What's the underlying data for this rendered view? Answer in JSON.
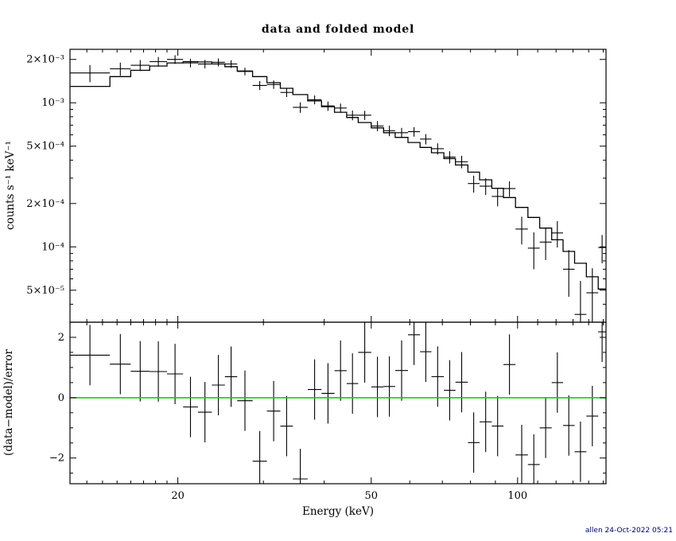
{
  "title": "data and folded model",
  "footer": "allen 24-Oct-2022 05:21",
  "colors": {
    "foreground": "#000000",
    "model_line": "#000000",
    "data_points": "#000000",
    "zero_line": "#00d900",
    "background": "#ffffff",
    "timestamp": "#000066"
  },
  "chart_data": {
    "type": "scatter",
    "subtype": "xspec-spectrum-with-residuals",
    "title": "data and folded model",
    "xlabel": "Energy (keV)",
    "xscale": "log",
    "xlim": [
      12,
      152
    ],
    "x_major_ticks": [
      {
        "value": 20,
        "label": "20"
      },
      {
        "value": 50,
        "label": "50"
      },
      {
        "value": 100,
        "label": "100"
      }
    ],
    "x_minor_ticks": [
      13,
      14,
      15,
      16,
      17,
      18,
      19,
      30,
      40,
      60,
      70,
      80,
      90,
      110,
      120,
      130,
      140,
      150
    ],
    "grid": false,
    "legend": "none",
    "panels": [
      {
        "name": "spectrum",
        "ylabel": "counts s⁻¹ keV⁻¹",
        "yscale": "log",
        "ylim": [
          3e-05,
          0.00235
        ],
        "y_major_ticks": [
          {
            "value": 0.002,
            "label": "2×10⁻³"
          },
          {
            "value": 0.001,
            "label": "10⁻³"
          },
          {
            "value": 0.0005,
            "label": "5×10⁻⁴"
          },
          {
            "value": 0.0002,
            "label": "2×10⁻⁴"
          },
          {
            "value": 0.0001,
            "label": "10⁻⁴"
          },
          {
            "value": 5e-05,
            "label": "5×10⁻⁵"
          }
        ],
        "y_minor_ticks": [
          4e-05,
          6e-05,
          7e-05,
          8e-05,
          9e-05,
          0.0003,
          0.0004,
          0.0006,
          0.0007,
          0.0008,
          0.0009
        ]
      },
      {
        "name": "residuals",
        "ylabel": "(data−model)/error",
        "yscale": "linear",
        "ylim": [
          -2.85,
          2.5
        ],
        "y_major_ticks": [
          {
            "value": 2,
            "label": "2"
          },
          {
            "value": 0,
            "label": "0"
          },
          {
            "value": -2,
            "label": "−2"
          }
        ],
        "y_minor_ticks": [
          -2.5,
          -1.5,
          -1,
          -0.5,
          0.5,
          1,
          1.5
        ],
        "zero_line": 0,
        "residual_errorbar": 1
      }
    ],
    "bin_edges_kev": [
      12.0,
      14.5,
      16.0,
      17.5,
      19.0,
      20.5,
      22.0,
      23.5,
      25.0,
      26.5,
      28.5,
      30.5,
      32.5,
      34.5,
      37.0,
      39.5,
      42.0,
      44.5,
      47.0,
      50.0,
      53.0,
      56.0,
      59.5,
      63.0,
      66.5,
      70.5,
      74.5,
      79.0,
      83.5,
      88.5,
      93.5,
      99.0,
      105.0,
      111.0,
      117.5,
      124.0,
      131.0,
      138.5,
      146.5,
      152.0
    ],
    "model": [
      0.0013,
      0.00152,
      0.00168,
      0.0018,
      0.00189,
      0.00193,
      0.00192,
      0.00186,
      0.00178,
      0.00166,
      0.00152,
      0.00138,
      0.00126,
      0.00114,
      0.00103,
      0.00094,
      0.00086,
      0.00079,
      0.00073,
      0.00067,
      0.00062,
      0.000575,
      0.00053,
      0.00049,
      0.00045,
      0.00041,
      0.00037,
      0.00033,
      0.000292,
      0.000255,
      0.00022,
      0.000188,
      0.00016,
      0.000135,
      0.000112,
      9.3e-05,
      7.7e-05,
      6.2e-05,
      5.1e-05
    ],
    "data": [
      0.00161,
      0.00172,
      0.00182,
      0.00193,
      0.002,
      0.00189,
      0.00186,
      0.00191,
      0.00186,
      0.00165,
      0.00132,
      0.00134,
      0.00118,
      0.00093,
      0.00105,
      0.00095,
      0.00092,
      0.00082,
      0.00082,
      0.00069,
      0.00064,
      0.00062,
      0.00063,
      0.00056,
      0.00048,
      0.00042,
      0.00039,
      0.000275,
      0.000264,
      0.000224,
      0.000254,
      0.000133,
      9.8e-05,
      0.000108,
      0.000125,
      7e-05,
      3.4e-05,
      4.8e-05,
      9.9e-05
    ],
    "data_error": [
      0.00022,
      0.00018,
      0.00016,
      0.00015,
      0.00014,
      0.00013,
      0.000125,
      0.00012,
      0.000115,
      0.0001,
      9.5e-05,
      9e-05,
      8.5e-05,
      7.8e-05,
      7.4e-05,
      7e-05,
      6.7e-05,
      6.4e-05,
      6e-05,
      5.6e-05,
      5.4e-05,
      5e-05,
      4.8e-05,
      4.6e-05,
      4.3e-05,
      4.1e-05,
      3.9e-05,
      3.7e-05,
      3.5e-05,
      3.3e-05,
      3.1e-05,
      2.9e-05,
      2.8e-05,
      2.7e-05,
      2.6e-05,
      2.5e-05,
      2.4e-05,
      2.3e-05,
      2.2e-05
    ],
    "residuals_definition": "bottom panel value per bin = (data − model) / data_error, error bars ±1"
  }
}
